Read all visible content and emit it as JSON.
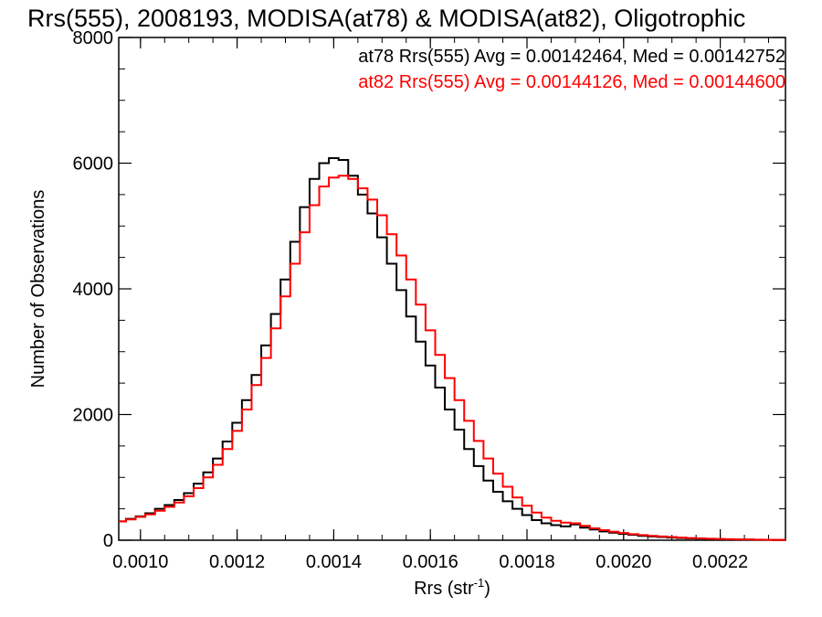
{
  "chart_data": {
    "type": "line",
    "title": "Rrs(555), 2008193, MODISA(at78) & MODISA(at82), Oligotrophic",
    "xlabel": "Rrs (str",
    "xlabel_sup": "-1",
    "xlabel_close": ")",
    "ylabel": "Number of Observations",
    "xlim": [
      0.000955,
      0.002335
    ],
    "ylim": [
      0,
      8000
    ],
    "xticks": [
      {
        "value": 0.001,
        "label": "0.0010"
      },
      {
        "value": 0.0012,
        "label": "0.0012"
      },
      {
        "value": 0.0014,
        "label": "0.0014"
      },
      {
        "value": 0.0016,
        "label": "0.0016"
      },
      {
        "value": 0.0018,
        "label": "0.0018"
      },
      {
        "value": 0.002,
        "label": "0.0020"
      },
      {
        "value": 0.0022,
        "label": "0.0022"
      }
    ],
    "yticks": [
      {
        "value": 0,
        "label": "0"
      },
      {
        "value": 2000,
        "label": "2000"
      },
      {
        "value": 4000,
        "label": "4000"
      },
      {
        "value": 6000,
        "label": "6000"
      },
      {
        "value": 8000,
        "label": "8000"
      }
    ],
    "grid": false,
    "legend_position": "top-right",
    "series": [
      {
        "name": "at78 Rrs(555) Avg = 0.00142464, Med = 0.00142752",
        "color": "#000000",
        "x": [
          0.00096,
          0.00098,
          0.001,
          0.00102,
          0.00104,
          0.00106,
          0.00108,
          0.0011,
          0.00112,
          0.00114,
          0.00116,
          0.00118,
          0.0012,
          0.00122,
          0.00124,
          0.00126,
          0.00128,
          0.0013,
          0.00132,
          0.00134,
          0.00136,
          0.00138,
          0.0014,
          0.00142,
          0.00144,
          0.00146,
          0.00148,
          0.0015,
          0.00152,
          0.00154,
          0.00156,
          0.00158,
          0.0016,
          0.00162,
          0.00164,
          0.00166,
          0.00168,
          0.0017,
          0.00172,
          0.00174,
          0.00176,
          0.00178,
          0.0018,
          0.00182,
          0.00184,
          0.00186,
          0.00188,
          0.0019,
          0.00192,
          0.00194,
          0.00196,
          0.00198,
          0.002,
          0.00202,
          0.00204,
          0.00206,
          0.00208,
          0.0021,
          0.00212,
          0.00214,
          0.00216,
          0.00218,
          0.0022,
          0.00222,
          0.00224,
          0.00226,
          0.00228,
          0.0023,
          0.00232,
          0.00234
        ],
        "y": [
          300,
          340,
          380,
          430,
          500,
          560,
          640,
          750,
          900,
          1080,
          1300,
          1570,
          1870,
          2230,
          2630,
          3100,
          3600,
          4150,
          4750,
          5300,
          5750,
          6000,
          6080,
          6050,
          5800,
          5500,
          5200,
          4820,
          4400,
          3980,
          3560,
          3160,
          2780,
          2430,
          2080,
          1760,
          1450,
          1180,
          950,
          770,
          620,
          500,
          400,
          320,
          270,
          240,
          220,
          250,
          200,
          170,
          140,
          120,
          100,
          85,
          70,
          60,
          50,
          42,
          35,
          30,
          25,
          20,
          17,
          14,
          12,
          10,
          8,
          7,
          6,
          5
        ]
      },
      {
        "name": "at82 Rrs(555) Avg = 0.00144126, Med = 0.00144600",
        "color": "#ff0000",
        "x": [
          0.00096,
          0.00098,
          0.001,
          0.00102,
          0.00104,
          0.00106,
          0.00108,
          0.0011,
          0.00112,
          0.00114,
          0.00116,
          0.00118,
          0.0012,
          0.00122,
          0.00124,
          0.00126,
          0.00128,
          0.0013,
          0.00132,
          0.00134,
          0.00136,
          0.00138,
          0.0014,
          0.00142,
          0.00144,
          0.00146,
          0.00148,
          0.0015,
          0.00152,
          0.00154,
          0.00156,
          0.00158,
          0.0016,
          0.00162,
          0.00164,
          0.00166,
          0.00168,
          0.0017,
          0.00172,
          0.00174,
          0.00176,
          0.00178,
          0.0018,
          0.00182,
          0.00184,
          0.00186,
          0.00188,
          0.0019,
          0.00192,
          0.00194,
          0.00196,
          0.00198,
          0.002,
          0.00202,
          0.00204,
          0.00206,
          0.00208,
          0.0021,
          0.00212,
          0.00214,
          0.00216,
          0.00218,
          0.0022,
          0.00222,
          0.00224,
          0.00226,
          0.00228,
          0.0023,
          0.00232,
          0.00234
        ],
        "y": [
          300,
          330,
          370,
          410,
          470,
          530,
          600,
          700,
          830,
          1000,
          1200,
          1450,
          1740,
          2080,
          2470,
          2900,
          3370,
          3880,
          4400,
          4900,
          5330,
          5630,
          5770,
          5800,
          5750,
          5600,
          5420,
          5170,
          4870,
          4530,
          4150,
          3750,
          3340,
          2950,
          2580,
          2230,
          1900,
          1580,
          1300,
          1060,
          850,
          680,
          550,
          440,
          360,
          310,
          280,
          270,
          230,
          190,
          160,
          135,
          115,
          97,
          82,
          70,
          60,
          50,
          42,
          35,
          29,
          24,
          20,
          16,
          13,
          11,
          9,
          7,
          6,
          5
        ]
      }
    ]
  }
}
